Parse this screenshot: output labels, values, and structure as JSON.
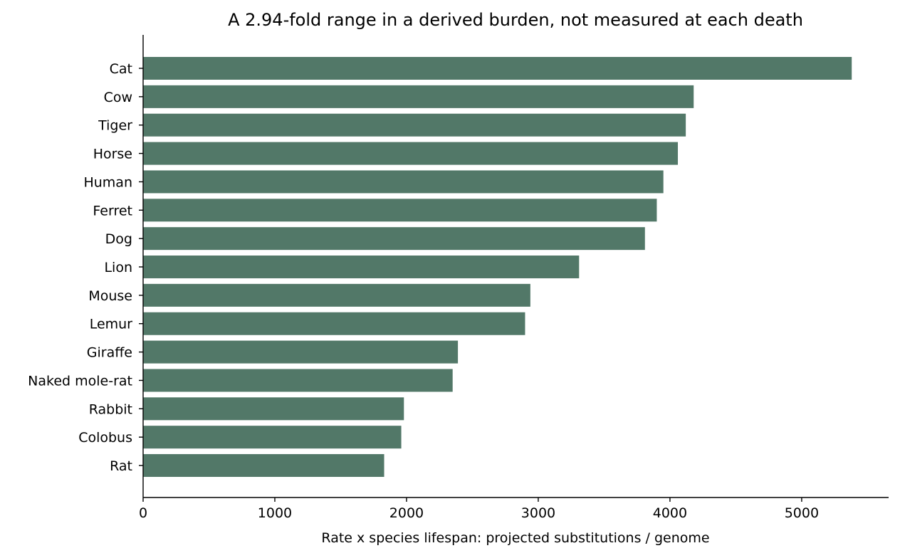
{
  "chart_data": {
    "type": "bar",
    "orientation": "horizontal",
    "title": "A 2.94-fold range in a derived burden, not measured at each death",
    "xlabel": "Rate x species lifespan: projected substitutions / genome",
    "ylabel": "",
    "xlim": [
      0,
      5660
    ],
    "xticks": [
      0,
      1000,
      2000,
      3000,
      4000,
      5000
    ],
    "grid": false,
    "legend": "none",
    "bar_color": "#527868",
    "categories": [
      "Cat",
      "Cow",
      "Tiger",
      "Horse",
      "Human",
      "Ferret",
      "Dog",
      "Lion",
      "Mouse",
      "Lemur",
      "Giraffe",
      "Naked mole-rat",
      "Rabbit",
      "Colobus",
      "Rat"
    ],
    "values": [
      5380,
      4180,
      4120,
      4060,
      3950,
      3900,
      3810,
      3310,
      2940,
      2900,
      2390,
      2350,
      1980,
      1960,
      1830
    ]
  }
}
